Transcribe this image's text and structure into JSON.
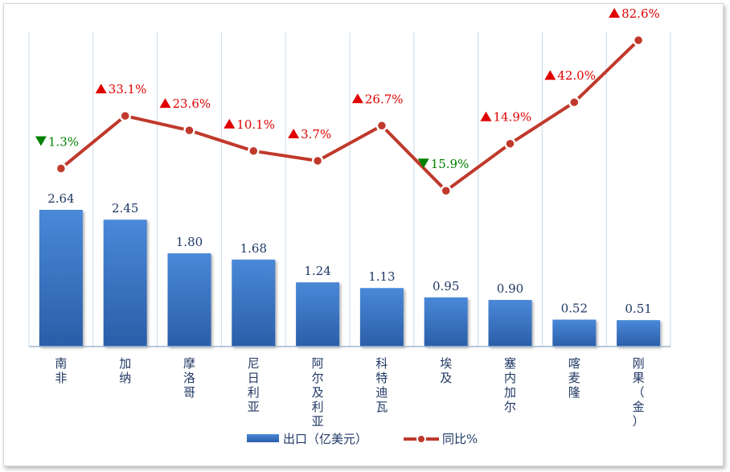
{
  "chart_data": {
    "type": "bar",
    "title": "",
    "xlabel": "",
    "ylabel": "",
    "categories": [
      "南非",
      "加纳",
      "摩洛哥",
      "尼日利亚",
      "阿尔及利亚",
      "科特迪瓦",
      "埃及",
      "塞内加尔",
      "喀麦隆",
      "刚果（金）"
    ],
    "series": [
      {
        "name": "出口（亿美元）",
        "type": "bar",
        "values": [
          2.64,
          2.45,
          1.8,
          1.68,
          1.24,
          1.13,
          0.95,
          0.9,
          0.52,
          0.51
        ],
        "labels": [
          "2.64",
          "2.45",
          "1.80",
          "1.68",
          "1.24",
          "1.13",
          "0.95",
          "0.90",
          "0.52",
          "0.51"
        ],
        "color": "#3a78c9"
      },
      {
        "name": "同比%",
        "type": "line",
        "values": [
          -1.3,
          33.1,
          23.6,
          10.1,
          3.7,
          26.7,
          -15.9,
          14.9,
          42.0,
          82.6
        ],
        "labels": [
          "1.3%",
          "33.1%",
          "23.6%",
          "10.1%",
          "3.7%",
          "26.7%",
          "15.9%",
          "14.9%",
          "42.0%",
          "82.6%"
        ],
        "color": "#c0392b"
      }
    ],
    "up_color": "#e00000",
    "down_color": "#008000",
    "grid": "vertical",
    "legend": "bottom-center"
  }
}
